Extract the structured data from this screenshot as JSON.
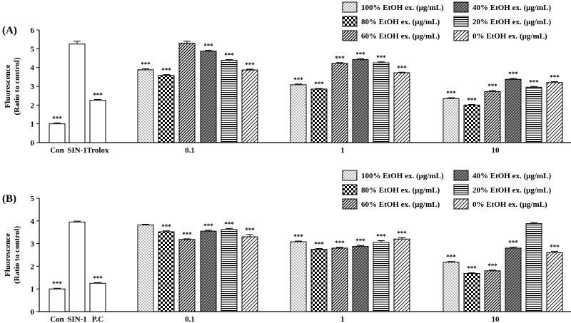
{
  "chart_data": [
    {
      "type": "bar",
      "panel_label": "(A)",
      "ylabel_lines": [
        "Fluorescence",
        "(Ratio to control)"
      ],
      "ylim": [
        0,
        6
      ],
      "yticks": [
        "0",
        "1",
        "2",
        "3",
        "4",
        "5",
        "6"
      ],
      "control_groups": [
        {
          "label": "Con",
          "value": 1.0,
          "error": 0.05,
          "sig": "***"
        },
        {
          "label": "SIN-1",
          "value": 5.25,
          "error": 0.15,
          "sig": ""
        },
        {
          "label": "Trolox",
          "value": 2.25,
          "error": 0.05,
          "sig": "***"
        }
      ],
      "categories": [
        "0.1",
        "1",
        "10"
      ],
      "series": [
        {
          "name": "100% EtOH ex. (μg/mL)",
          "values": [
            3.88,
            3.08,
            2.35
          ],
          "errors": [
            0.05,
            0.04,
            0.04
          ],
          "sig": [
            "***",
            "***",
            "***"
          ]
        },
        {
          "name": "80% EtOH ex. (μg/mL)",
          "values": [
            3.58,
            2.85,
            2.0
          ],
          "errors": [
            0.04,
            0.03,
            0.03
          ],
          "sig": [
            "***",
            "***",
            "***"
          ]
        },
        {
          "name": "60% EtOH ex. (μg/mL)",
          "values": [
            5.3,
            4.22,
            2.72
          ],
          "errors": [
            0.1,
            0.04,
            0.05
          ],
          "sig": [
            "",
            "***",
            "***"
          ]
        },
        {
          "name": "40% EtOH ex. (μg/mL)",
          "values": [
            4.87,
            4.42,
            3.37
          ],
          "errors": [
            0.05,
            0.04,
            0.05
          ],
          "sig": [
            "***",
            "***",
            "***"
          ]
        },
        {
          "name": "20% EtOH ex. (μg/mL)",
          "values": [
            4.38,
            4.25,
            2.95
          ],
          "errors": [
            0.04,
            0.05,
            0.04
          ],
          "sig": [
            "***",
            "***",
            "***"
          ]
        },
        {
          "name": "0% EtOH ex. (μg/mL)",
          "values": [
            3.87,
            3.72,
            3.2
          ],
          "errors": [
            0.04,
            0.03,
            0.05
          ],
          "sig": [
            "***",
            "***",
            "***"
          ]
        }
      ]
    },
    {
      "type": "bar",
      "panel_label": "(B)",
      "ylabel_lines": [
        "Fluorescence",
        "(Ratio to control)"
      ],
      "ylim": [
        0,
        5
      ],
      "yticks": [
        "0",
        "1",
        "2",
        "3",
        "4",
        "5"
      ],
      "control_groups": [
        {
          "label": "Con",
          "value": 1.0,
          "error": 0.03,
          "sig": "***"
        },
        {
          "label": "SIN-1",
          "value": 3.95,
          "error": 0.04,
          "sig": ""
        },
        {
          "label": "P.C",
          "value": 1.25,
          "error": 0.03,
          "sig": "***"
        }
      ],
      "categories": [
        "0.1",
        "1",
        "10"
      ],
      "series": [
        {
          "name": "100% EtOH ex. (μg/mL)",
          "values": [
            3.82,
            3.08,
            2.18
          ],
          "errors": [
            0.03,
            0.03,
            0.03
          ],
          "sig": [
            "",
            "***",
            "***"
          ]
        },
        {
          "name": "80% EtOH ex. (μg/mL)",
          "values": [
            3.52,
            2.75,
            1.68
          ],
          "errors": [
            0.04,
            0.03,
            0.03
          ],
          "sig": [
            "***",
            "***",
            "***"
          ]
        },
        {
          "name": "60% EtOH ex. (μg/mL)",
          "values": [
            3.18,
            2.8,
            1.8
          ],
          "errors": [
            0.03,
            0.03,
            0.03
          ],
          "sig": [
            "***",
            "***",
            "***"
          ]
        },
        {
          "name": "40% EtOH ex. (μg/mL)",
          "values": [
            3.55,
            2.88,
            2.8
          ],
          "errors": [
            0.04,
            0.04,
            0.04
          ],
          "sig": [
            "***",
            "***",
            "***"
          ]
        },
        {
          "name": "20% EtOH ex. (μg/mL)",
          "values": [
            3.62,
            3.05,
            3.88
          ],
          "errors": [
            0.05,
            0.08,
            0.05
          ],
          "sig": [
            "***",
            "***",
            ""
          ]
        },
        {
          "name": "0% EtOH ex. (μg/mL)",
          "values": [
            3.3,
            3.2,
            2.6
          ],
          "errors": [
            0.1,
            0.06,
            0.06
          ],
          "sig": [
            "***",
            "***",
            "***"
          ]
        }
      ]
    }
  ]
}
